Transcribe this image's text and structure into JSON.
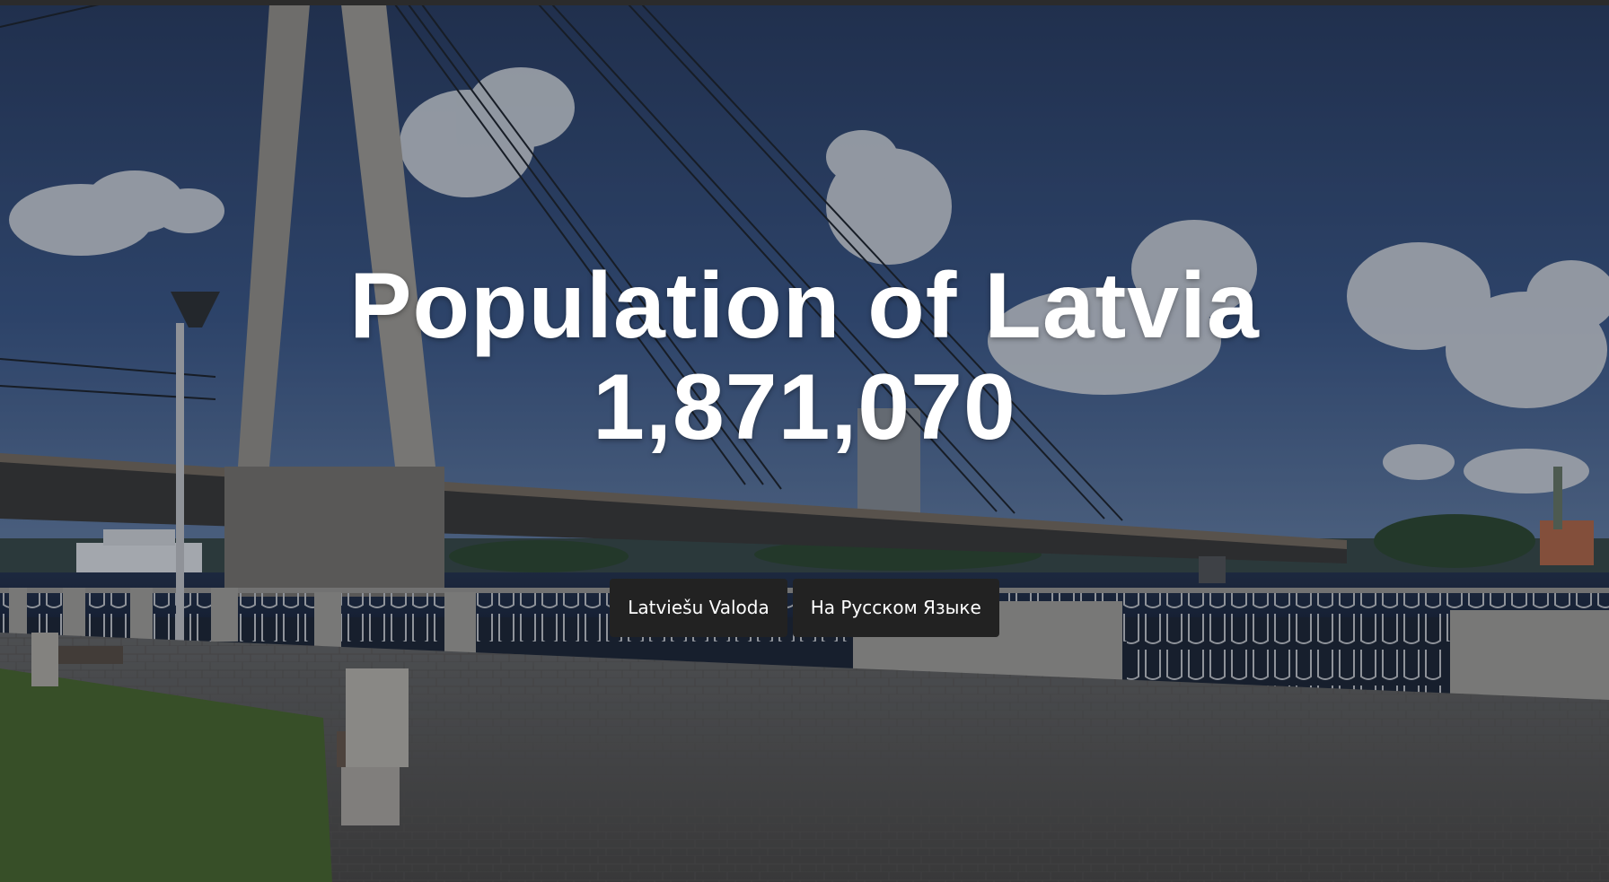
{
  "hero": {
    "title": "Population of Latvia",
    "population": "1,871,070"
  },
  "language_links": [
    {
      "label": "Latviešu Valoda"
    },
    {
      "label": "На Русском Языке"
    }
  ],
  "colors": {
    "overlay": "#0a101c",
    "button_bg": "#222222",
    "text": "#ffffff"
  }
}
